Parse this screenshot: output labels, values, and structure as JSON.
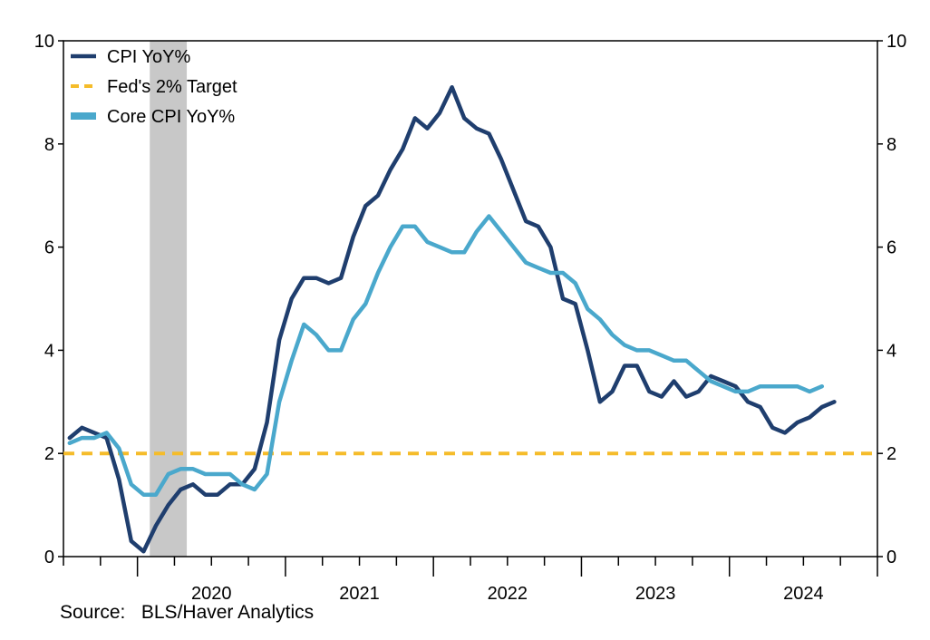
{
  "chart_data": {
    "type": "line",
    "x_start": "2019-07",
    "x_step": "month",
    "x_tick_labels": [
      "2020",
      "2021",
      "2022",
      "2023",
      "2024"
    ],
    "ylim": [
      0,
      10
    ],
    "y_ticks": [
      0,
      2,
      4,
      6,
      8,
      10
    ],
    "secondary_y_ticks": [
      0,
      2,
      4,
      6,
      8,
      10
    ],
    "recession_shading": {
      "from": "2020-02",
      "to": "2020-04",
      "color": "#c8c8c8"
    },
    "legend_position": "top-left",
    "series": [
      {
        "name": "CPI YoY%",
        "color": "#1f3e6e",
        "style": "solid",
        "values": [
          2.3,
          2.5,
          2.4,
          2.3,
          1.5,
          0.3,
          0.1,
          0.6,
          1.0,
          1.3,
          1.4,
          1.2,
          1.2,
          1.4,
          1.4,
          1.7,
          2.6,
          4.2,
          5.0,
          5.4,
          5.4,
          5.3,
          5.4,
          6.2,
          6.8,
          7.0,
          7.5,
          7.9,
          8.5,
          8.3,
          8.6,
          9.1,
          8.5,
          8.3,
          8.2,
          7.7,
          7.1,
          6.5,
          6.4,
          6.0,
          5.0,
          4.9,
          4.0,
          3.0,
          3.2,
          3.7,
          3.7,
          3.2,
          3.1,
          3.4,
          3.1,
          3.2,
          3.5,
          3.4,
          3.3,
          3.0,
          2.9,
          2.5,
          2.4,
          2.6,
          2.7,
          2.9,
          3.0
        ],
        "x_start": "2019-07"
      },
      {
        "name": "Fed's 2% Target",
        "color": "#f5bc2a",
        "style": "dashed",
        "values": [
          2.0,
          2.0
        ],
        "x": [
          "2019-07",
          "2024-12"
        ]
      },
      {
        "name": "Core CPI YoY%",
        "color": "#4aa8cc",
        "style": "solid",
        "values": [
          2.2,
          2.3,
          2.3,
          2.4,
          2.1,
          1.4,
          1.2,
          1.2,
          1.6,
          1.7,
          1.7,
          1.6,
          1.6,
          1.6,
          1.4,
          1.3,
          1.6,
          3.0,
          3.8,
          4.5,
          4.3,
          4.0,
          4.0,
          4.6,
          4.9,
          5.5,
          6.0,
          6.4,
          6.4,
          6.1,
          6.0,
          5.9,
          5.9,
          6.3,
          6.6,
          6.3,
          6.0,
          5.7,
          5.6,
          5.5,
          5.5,
          5.3,
          4.8,
          4.6,
          4.3,
          4.1,
          4.0,
          4.0,
          3.9,
          3.8,
          3.8,
          3.6,
          3.4,
          3.3,
          3.2,
          3.2,
          3.3,
          3.3,
          3.3,
          3.3,
          3.2,
          3.3
        ],
        "x_start": "2019-07"
      }
    ]
  },
  "source_text": "Source:   BLS/Haver Analytics"
}
